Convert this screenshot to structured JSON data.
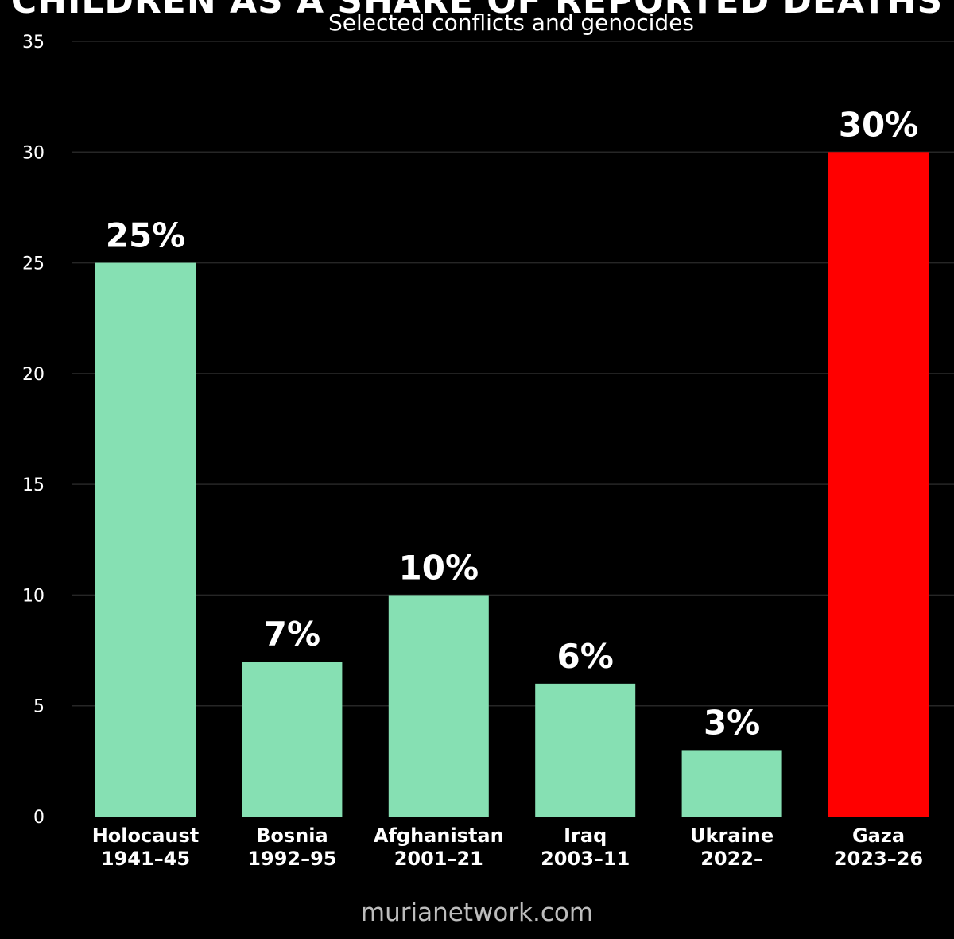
{
  "title": "CHILDREN AS A SHARE OF REPORTED DEATHS",
  "subtitle": "Selected conflicts and genocides",
  "watermark": "murianetwork.com",
  "colors": {
    "background": "#000000",
    "bar_default": "#86e0b3",
    "bar_highlight": "#ff0000",
    "grid": "#262626",
    "text": "#ffffff"
  },
  "chart_data": {
    "type": "bar",
    "title": "CHILDREN AS A SHARE OF REPORTED DEATHS",
    "subtitle": "Selected conflicts and genocides",
    "ylim": [
      0,
      35
    ],
    "yticks": [
      0,
      5,
      10,
      15,
      20,
      25,
      30,
      35
    ],
    "grid": true,
    "categories": [
      [
        "Holocaust",
        "1941–45"
      ],
      [
        "Bosnia",
        "1992–95"
      ],
      [
        "Afghanistan",
        "2001–21"
      ],
      [
        "Iraq",
        "2003–11"
      ],
      [
        "Ukraine",
        "2022–"
      ],
      [
        "Gaza",
        "2023–26"
      ]
    ],
    "values": [
      25,
      7,
      10,
      6,
      3,
      30
    ],
    "value_labels": [
      "25%",
      "7%",
      "10%",
      "6%",
      "3%",
      "30%"
    ],
    "highlight_index": 5
  }
}
